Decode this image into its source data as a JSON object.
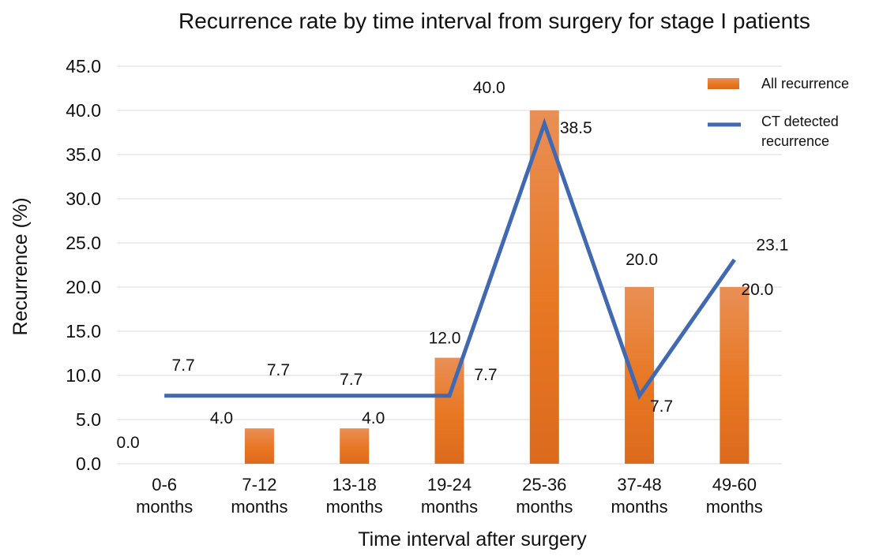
{
  "chart_data": {
    "type": "bar",
    "title": "Recurrence rate by time interval from surgery for stage I patients",
    "xlabel": "Time interval after surgery",
    "ylabel": "Recurrence (%)",
    "ylim": [
      0,
      45
    ],
    "yticks": [
      "0.0",
      "5.0",
      "10.0",
      "15.0",
      "20.0",
      "25.0",
      "30.0",
      "35.0",
      "40.0",
      "45.0"
    ],
    "categories": [
      [
        "0-6",
        "months"
      ],
      [
        "7-12",
        "months"
      ],
      [
        "13-18",
        "months"
      ],
      [
        "19-24",
        "months"
      ],
      [
        "25-36",
        "months"
      ],
      [
        "37-48",
        "months"
      ],
      [
        "49-60",
        "months"
      ]
    ],
    "series": [
      {
        "name": "All recurrence",
        "kind": "bar",
        "color": "#E87722",
        "values": [
          0.0,
          4.0,
          4.0,
          12.0,
          40.0,
          20.0,
          20.0
        ],
        "labels": [
          "0.0",
          "4.0",
          "4.0",
          "12.0",
          "40.0",
          "20.0",
          "20.0"
        ]
      },
      {
        "name": "CT detected recurrence",
        "name_lines": [
          "CT detected",
          "recurrence"
        ],
        "kind": "line",
        "color": "#4169B2",
        "values": [
          7.7,
          7.7,
          7.7,
          7.7,
          38.5,
          7.7,
          23.1
        ],
        "labels": [
          "7.7",
          "7.7",
          "7.7",
          "7.7",
          "38.5",
          "7.7",
          "23.1"
        ]
      }
    ],
    "grid": true,
    "legend": "top-right"
  }
}
